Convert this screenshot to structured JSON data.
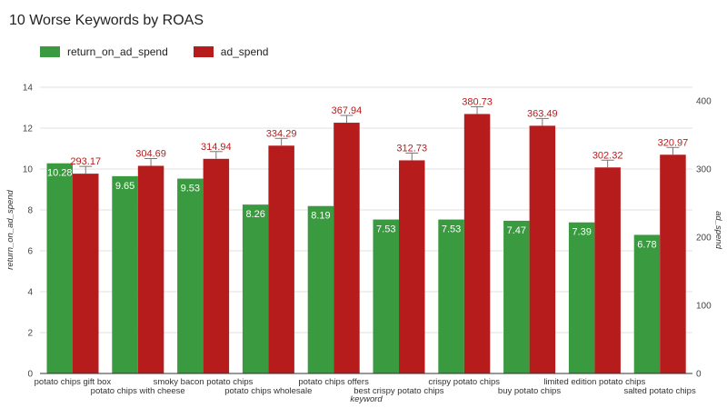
{
  "chart_data": {
    "type": "bar",
    "title": "10 Worse Keywords by ROAS",
    "xlabel": "keyword",
    "ylabel": "return_on_ad_spend",
    "y2label": "ad_spend",
    "categories": [
      "potato chips gift box",
      "potato chips with cheese",
      "smoky bacon potato chips",
      "potato chips wholesale",
      "potato chips offers",
      "best crispy potato chips",
      "crispy potato chips",
      "buy potato chips",
      "limited edition potato chips",
      "salted potato chips"
    ],
    "series": [
      {
        "name": "return_on_ad_spend",
        "axis": "left",
        "color": "#3a9a3f",
        "values": [
          10.28,
          9.65,
          9.53,
          8.26,
          8.19,
          7.53,
          7.53,
          7.47,
          7.39,
          6.78
        ],
        "labels": [
          "10.28",
          "9.65",
          "9.53",
          "8.26",
          "8.19",
          "7.53",
          "7.53",
          "7.47",
          "7.39",
          "6.78"
        ]
      },
      {
        "name": "ad_spend",
        "axis": "right",
        "color": "#b71c1c",
        "values": [
          293.17,
          304.69,
          314.94,
          334.29,
          367.94,
          312.73,
          380.73,
          363.49,
          302.32,
          320.97
        ],
        "labels": [
          "293.17",
          "304.69",
          "314.94",
          "334.29",
          "367.94",
          "312.73",
          "380.73",
          "363.49",
          "302.32",
          "320.97"
        ]
      }
    ],
    "ylim": [
      0,
      14
    ],
    "yticks": [
      "0",
      "2",
      "4",
      "6",
      "8",
      "10",
      "12",
      "14"
    ],
    "y2lim": [
      0,
      420
    ],
    "y2ticks": [
      "0",
      "100",
      "200",
      "300",
      "400"
    ],
    "grid": true,
    "legend_position": "top-left"
  }
}
